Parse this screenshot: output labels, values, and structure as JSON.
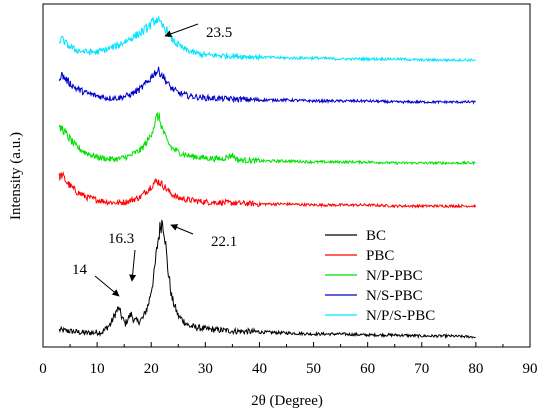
{
  "chart_data": {
    "type": "line",
    "xlabel": "2θ (Degree)",
    "ylabel": "Intensity (a.u.)",
    "xlim": [
      0,
      90
    ],
    "x_ticks": [
      0,
      10,
      20,
      30,
      40,
      50,
      60,
      70,
      80,
      90
    ],
    "y_ticks_shown": false,
    "grid": false,
    "legend_position": "center-right",
    "series": [
      {
        "name": "BC",
        "color": "#000000",
        "x": [
          3,
          8,
          11,
          12.5,
          13.5,
          14,
          14.5,
          15.2,
          15.8,
          16.3,
          16.8,
          17.5,
          18.5,
          19.5,
          20.5,
          21.2,
          21.7,
          22.1,
          22.5,
          23,
          23.8,
          25,
          27,
          30,
          35,
          40,
          45,
          50,
          55,
          60,
          65,
          70,
          75,
          80
        ],
        "y": [
          8,
          5,
          6,
          14,
          26,
          30,
          22,
          14,
          20,
          24,
          18,
          16,
          20,
          34,
          62,
          96,
          112,
          118,
          104,
          72,
          40,
          22,
          12,
          9,
          7,
          6,
          5,
          4,
          4,
          3,
          3,
          2,
          2,
          1
        ]
      },
      {
        "name": "PBC",
        "color": "#ff0000",
        "x": [
          3,
          3.5,
          4.5,
          6,
          8,
          10,
          12,
          14,
          16,
          18,
          19.5,
          20.5,
          21.2,
          21.7,
          22.5,
          23.5,
          25,
          27,
          30,
          35,
          40,
          45,
          50,
          55,
          60,
          65,
          70,
          75,
          80
        ],
        "y": [
          30,
          32,
          24,
          16,
          10,
          7,
          5,
          4,
          6,
          10,
          18,
          24,
          26,
          24,
          20,
          14,
          9,
          7,
          5,
          4,
          3,
          3,
          2,
          2,
          2,
          1,
          1,
          1,
          1
        ]
      },
      {
        "name": "N/P-PBC",
        "color": "#00e000",
        "x": [
          3,
          3.5,
          4.5,
          6,
          8,
          10,
          12,
          14,
          16,
          18,
          19.5,
          20.5,
          21.1,
          21.5,
          22,
          22.8,
          23.8,
          25,
          27,
          30,
          33,
          35,
          36,
          40,
          45,
          50,
          55,
          60,
          65,
          70,
          75,
          80
        ],
        "y": [
          34,
          36,
          28,
          18,
          11,
          7,
          5,
          5,
          8,
          14,
          24,
          38,
          48,
          46,
          36,
          24,
          16,
          12,
          8,
          6,
          5,
          9,
          4,
          3,
          3,
          2,
          2,
          2,
          1,
          1,
          1,
          1
        ]
      },
      {
        "name": "N/S-PBC",
        "color": "#0000cc",
        "x": [
          3,
          3.5,
          4.5,
          6,
          8,
          10,
          12,
          14,
          16,
          18,
          19.5,
          20.5,
          21.3,
          21.8,
          22.5,
          23.5,
          25,
          27,
          30,
          35,
          40,
          45,
          50,
          55,
          60,
          65,
          70,
          75,
          80
        ],
        "y": [
          26,
          28,
          22,
          15,
          10,
          7,
          5,
          5,
          8,
          14,
          22,
          30,
          32,
          30,
          24,
          16,
          10,
          7,
          5,
          4,
          3,
          3,
          2,
          2,
          2,
          1,
          1,
          1,
          1
        ]
      },
      {
        "name": "N/P/S-PBC",
        "color": "#00e5ff",
        "x": [
          3,
          3.5,
          4.5,
          6,
          8,
          10,
          12,
          14,
          16,
          18,
          19.5,
          20.5,
          21.2,
          21.7,
          22.3,
          23,
          23.5,
          24.5,
          26,
          28,
          30,
          35,
          40,
          45,
          50,
          55,
          60,
          65,
          70,
          75,
          80
        ],
        "y": [
          20,
          22,
          16,
          11,
          9,
          9,
          12,
          16,
          22,
          28,
          34,
          40,
          42,
          36,
          34,
          30,
          24,
          18,
          12,
          8,
          6,
          5,
          4,
          3,
          3,
          2,
          2,
          2,
          1,
          1,
          1
        ]
      }
    ],
    "annotations": [
      {
        "text": "14",
        "x": 14
      },
      {
        "text": "16.3",
        "x": 16.3
      },
      {
        "text": "22.1",
        "x": 22.1
      },
      {
        "text": "23.5",
        "x": 23.5
      }
    ]
  }
}
